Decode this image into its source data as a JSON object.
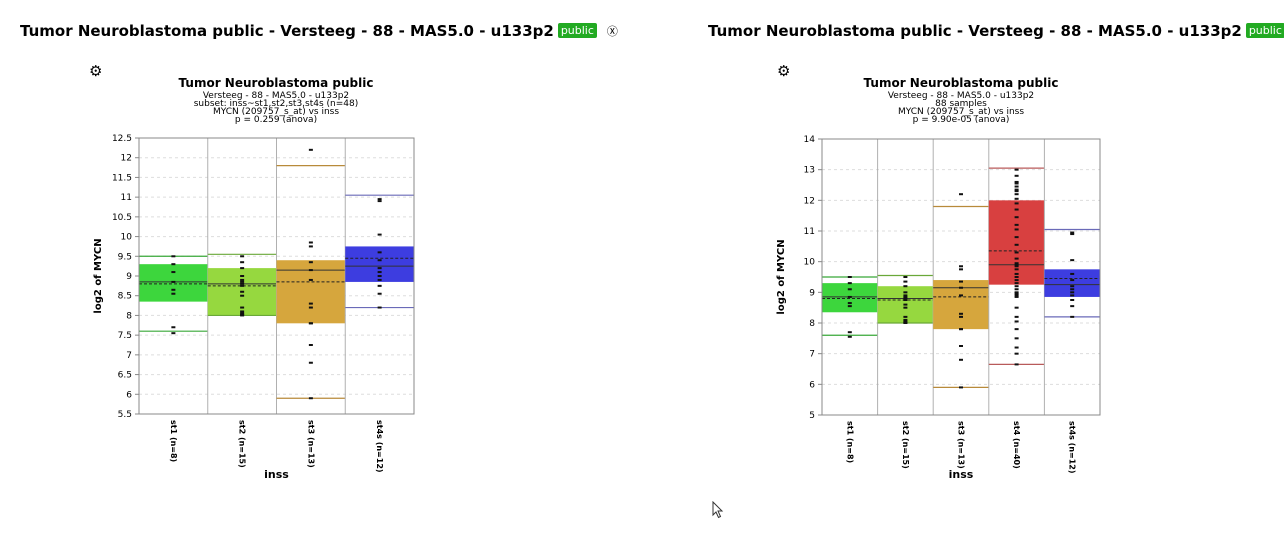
{
  "panels": [
    {
      "heading": "Tumor Neuroblastoma public - Versteeg - 88 - MAS5.0 - u133p2",
      "badge": "public",
      "chart_data": {
        "type": "box",
        "title": "Tumor Neuroblastoma public",
        "subtitles": [
          "Versteeg - 88 - MAS5.0 - u133p2",
          "subset: inss~st1,st2,st3,st4s (n=48)",
          "MYCN (209757_s_at) vs inss",
          "p = 0.259 (anova)"
        ],
        "xlabel": "inss",
        "ylabel": "log2 of MYCN",
        "ylim": [
          5.5,
          12.5
        ],
        "yticks": [
          "12.5",
          "12",
          "11.5",
          "11",
          "10.5",
          "10",
          "9.5",
          "9",
          "8.5",
          "8",
          "7.5",
          "7",
          "6.5",
          "6",
          "5.5"
        ],
        "grid": true,
        "categories": [
          "st1 (n=8)",
          "st2 (n=15)",
          "st3 (n=13)",
          "st4s (n=12)"
        ],
        "boxes": [
          {
            "q1": 8.35,
            "median": 8.85,
            "mean": 8.8,
            "q3": 9.3,
            "min": 7.6,
            "max": 9.5,
            "color": "#3dd63d",
            "line": "#38a838",
            "points": [
              9.5,
              9.3,
              9.1,
              8.85,
              8.65,
              8.55,
              7.7,
              7.55
            ]
          },
          {
            "q1": 8.0,
            "median": 8.8,
            "mean": 8.75,
            "q3": 9.2,
            "min": 8.0,
            "max": 9.55,
            "color": "#96d83f",
            "line": "#6aa838",
            "points": [
              9.5,
              9.35,
              9.2,
              9.0,
              8.9,
              8.85,
              8.8,
              8.75,
              8.6,
              8.5,
              8.2,
              8.1,
              8.05,
              8.02,
              8.0
            ]
          },
          {
            "q1": 7.8,
            "median": 9.15,
            "mean": 8.85,
            "q3": 9.4,
            "min": 5.9,
            "max": 11.8,
            "color": "#d6a63d",
            "line": "#b88a3a",
            "points": [
              12.2,
              9.85,
              9.75,
              9.35,
              9.15,
              8.3,
              8.2,
              7.8,
              7.8,
              7.25,
              6.8,
              5.9,
              8.9
            ]
          },
          {
            "q1": 8.85,
            "median": 9.25,
            "mean": 9.45,
            "q3": 9.75,
            "min": 8.2,
            "max": 11.05,
            "color": "#3d3de0",
            "line": "#6a6ab8",
            "points": [
              10.95,
              10.9,
              10.05,
              9.6,
              9.4,
              9.2,
              9.1,
              8.9,
              8.75,
              8.55,
              8.2,
              9.0
            ]
          }
        ]
      }
    },
    {
      "heading": "Tumor Neuroblastoma public - Versteeg - 88 - MAS5.0 - u133p2",
      "badge": "public",
      "chart_data": {
        "type": "box",
        "title": "Tumor Neuroblastoma public",
        "subtitles": [
          "Versteeg - 88 - MAS5.0 - u133p2",
          "88 samples",
          "MYCN (209757_s_at) vs inss",
          "p = 9.90e-05 (anova)"
        ],
        "xlabel": "inss",
        "ylabel": "log2 of MYCN",
        "ylim": [
          5,
          14
        ],
        "yticks": [
          "14",
          "13",
          "12",
          "11",
          "10",
          "9",
          "8",
          "7",
          "6",
          "5"
        ],
        "grid": true,
        "categories": [
          "st1 (n=8)",
          "st2 (n=15)",
          "st3 (n=13)",
          "st4 (n=40)",
          "st4s (n=12)"
        ],
        "boxes": [
          {
            "q1": 8.35,
            "median": 8.85,
            "mean": 8.8,
            "q3": 9.3,
            "min": 7.6,
            "max": 9.5,
            "color": "#3dd63d",
            "line": "#38a838",
            "points": [
              9.5,
              9.3,
              9.1,
              8.85,
              8.65,
              8.55,
              7.7,
              7.55
            ]
          },
          {
            "q1": 8.0,
            "median": 8.8,
            "mean": 8.75,
            "q3": 9.2,
            "min": 8.0,
            "max": 9.55,
            "color": "#96d83f",
            "line": "#6aa838",
            "points": [
              9.5,
              9.35,
              9.2,
              9.0,
              8.9,
              8.85,
              8.8,
              8.75,
              8.6,
              8.5,
              8.2,
              8.1,
              8.05,
              8.02,
              8.0
            ]
          },
          {
            "q1": 7.8,
            "median": 9.15,
            "mean": 8.85,
            "q3": 9.4,
            "min": 5.9,
            "max": 11.8,
            "color": "#d6a63d",
            "line": "#b88a3a",
            "points": [
              12.2,
              9.85,
              9.75,
              9.35,
              9.15,
              8.3,
              8.2,
              7.8,
              7.8,
              7.25,
              6.8,
              5.9,
              8.9
            ]
          },
          {
            "q1": 9.25,
            "median": 9.9,
            "mean": 10.35,
            "q3": 12.0,
            "min": 6.65,
            "max": 13.05,
            "color": "#d84040",
            "line": "#b85a5a",
            "points": [
              13.0,
              12.8,
              12.6,
              12.55,
              12.45,
              12.35,
              12.3,
              12.2,
              12.05,
              11.9,
              11.7,
              11.45,
              11.2,
              11.05,
              10.8,
              10.55,
              10.3,
              10.1,
              9.95,
              9.9,
              9.85,
              9.75,
              9.6,
              9.5,
              9.4,
              9.3,
              9.1,
              9.0,
              8.95,
              8.9,
              8.85,
              8.5,
              8.2,
              8.05,
              7.8,
              7.5,
              7.2,
              7.0,
              6.65,
              9.2
            ]
          },
          {
            "q1": 8.85,
            "median": 9.25,
            "mean": 9.45,
            "q3": 9.75,
            "min": 8.2,
            "max": 11.05,
            "color": "#3d3de0",
            "line": "#6a6ab8",
            "points": [
              10.95,
              10.9,
              10.05,
              9.6,
              9.4,
              9.2,
              9.1,
              8.9,
              8.75,
              8.55,
              8.2,
              9.0
            ]
          }
        ]
      }
    }
  ]
}
